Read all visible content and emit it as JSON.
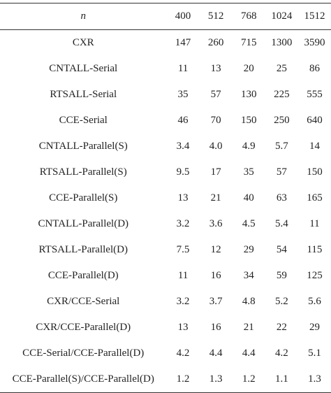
{
  "table": {
    "header": {
      "label": "n",
      "sizes": [
        "400",
        "512",
        "768",
        "1024",
        "1512"
      ]
    },
    "rows": [
      {
        "method": "CXR",
        "values": [
          "147",
          "260",
          "715",
          "1300",
          "3590"
        ]
      },
      {
        "method": "CNTALL-Serial",
        "values": [
          "11",
          "13",
          "20",
          "25",
          "86"
        ]
      },
      {
        "method": "RTSALL-Serial",
        "values": [
          "35",
          "57",
          "130",
          "225",
          "555"
        ]
      },
      {
        "method": "CCE-Serial",
        "values": [
          "46",
          "70",
          "150",
          "250",
          "640"
        ]
      },
      {
        "method": "CNTALL-Parallel(S)",
        "values": [
          "3.4",
          "4.0",
          "4.9",
          "5.7",
          "14"
        ]
      },
      {
        "method": "RTSALL-Parallel(S)",
        "values": [
          "9.5",
          "17",
          "35",
          "57",
          "150"
        ]
      },
      {
        "method": "CCE-Parallel(S)",
        "values": [
          "13",
          "21",
          "40",
          "63",
          "165"
        ]
      },
      {
        "method": "CNTALL-Parallel(D)",
        "values": [
          "3.2",
          "3.6",
          "4.5",
          "5.4",
          "11"
        ]
      },
      {
        "method": "RTSALL-Parallel(D)",
        "values": [
          "7.5",
          "12",
          "29",
          "54",
          "115"
        ]
      },
      {
        "method": "CCE-Parallel(D)",
        "values": [
          "11",
          "16",
          "34",
          "59",
          "125"
        ]
      },
      {
        "method": "CXR/CCE-Serial",
        "values": [
          "3.2",
          "3.7",
          "4.8",
          "5.2",
          "5.6"
        ]
      },
      {
        "method": "CXR/CCE-Parallel(D)",
        "values": [
          "13",
          "16",
          "21",
          "22",
          "29"
        ]
      },
      {
        "method": "CCE-Serial/CCE-Parallel(D)",
        "values": [
          "4.2",
          "4.4",
          "4.4",
          "4.2",
          "5.1"
        ]
      },
      {
        "method": "CCE-Parallel(S)/CCE-Parallel(D)",
        "values": [
          "1.2",
          "1.3",
          "1.2",
          "1.1",
          "1.3"
        ]
      }
    ]
  }
}
